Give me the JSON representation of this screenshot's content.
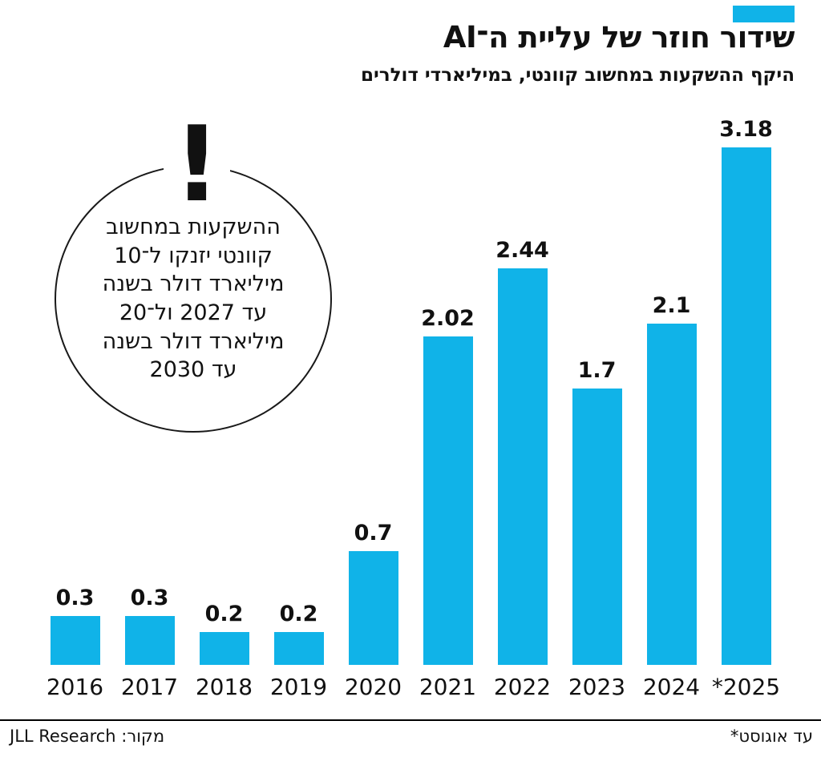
{
  "accent_color": "#10b3e8",
  "header": {
    "title": "שידור חוזר של עליית ה־AI",
    "subtitle": "היקף ההשקעות במחשוב קוונטי, במיליארדי דולרים"
  },
  "annotation": {
    "mark": "!",
    "text": "ההשקעות במחשוב קוונטי יזנקו ל־10 מיליארד דולר בשנה עד 2027 ול־20 מיליארד דולר בשנה עד 2030"
  },
  "chart_data": {
    "type": "bar",
    "title": "שידור חוזר של עליית ה־AI",
    "subtitle": "היקף ההשקעות במחשוב קוונטי, במיליארדי דולרים",
    "categories": [
      "2016",
      "2017",
      "2018",
      "2019",
      "2020",
      "2021",
      "2022",
      "2023",
      "2024",
      "*2025"
    ],
    "values": [
      0.3,
      0.3,
      0.2,
      0.2,
      0.7,
      2.02,
      2.44,
      1.7,
      2.1,
      3.18
    ],
    "value_labels": [
      "0.3",
      "0.3",
      "0.2",
      "0.2",
      "0.7",
      "2.02",
      "2.44",
      "1.7",
      "2.1",
      "3.18"
    ],
    "bar_color": "#10b3e8",
    "xlabel": "",
    "ylabel": "",
    "ylim": [
      0,
      3.3
    ],
    "grid": false,
    "legend_position": "none"
  },
  "footer": {
    "source": "מקור: JLL Research",
    "note": "*עד אוגוסט"
  }
}
